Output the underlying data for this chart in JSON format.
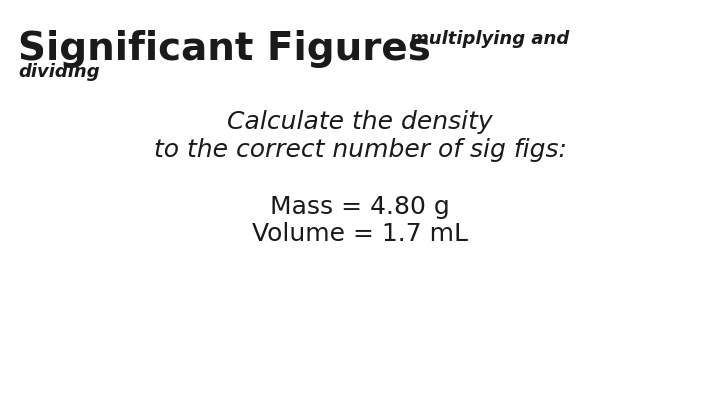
{
  "background_color": "#ffffff",
  "title_bold": "Significant Figures",
  "title_small1": "multiplying and",
  "title_small2": "dividing",
  "subtitle_line1": "Calculate the density",
  "subtitle_line2": "to the correct number of sig figs:",
  "body_line1": "Mass = 4.80 g",
  "body_line2": "Volume = 1.7 mL",
  "title_fontsize": 28,
  "title_small_fontsize": 13,
  "subtitle_fontsize": 18,
  "body_fontsize": 18,
  "text_color": "#1a1a1a"
}
